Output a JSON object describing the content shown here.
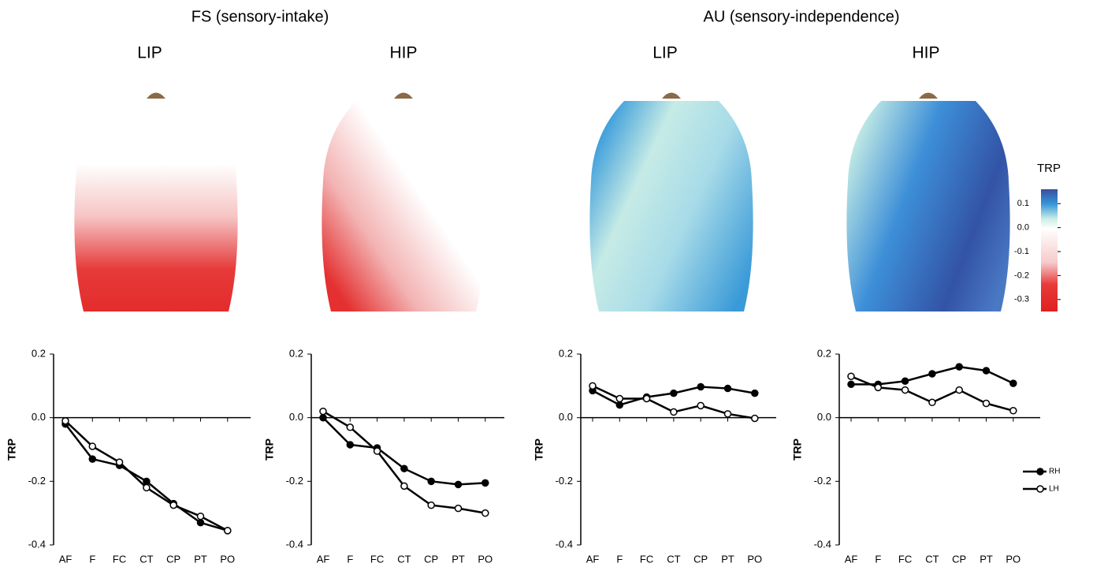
{
  "groups": [
    "FS (sensory-intake)",
    "AU (sensory-independence)"
  ],
  "colorbar": {
    "title": "TRP",
    "lim": [
      -0.35,
      0.16
    ],
    "ticks": [
      0.1,
      {
        "value": 0,
        "label": "0.0"
      },
      -0.1,
      -0.2,
      -0.3
    ]
  },
  "chart_data": [
    {
      "type": "line",
      "title": "LIP",
      "ylabel": "TRP",
      "categories": [
        "AF",
        "F",
        "FC",
        "CT",
        "CP",
        "PT",
        "PO"
      ],
      "ylim": [
        -0.4,
        0.2
      ],
      "yticks": [
        0.2,
        {
          "value": 0,
          "label": "0.0"
        },
        -0.2,
        -0.4
      ],
      "series": [
        {
          "color": "#000000",
          "marker_fill": "#000000",
          "values": [
            -0.02,
            -0.13,
            -0.15,
            -0.2,
            -0.27,
            -0.33,
            -0.355
          ]
        },
        {
          "color": "#000000",
          "marker_fill": "#ffffff",
          "values": [
            -0.01,
            -0.09,
            -0.14,
            -0.22,
            -0.275,
            -0.31,
            -0.355
          ]
        }
      ]
    },
    {
      "type": "line",
      "title": "HIP",
      "ylabel": "TRP",
      "categories": [
        "AF",
        "F",
        "FC",
        "CT",
        "CP",
        "PT",
        "PO"
      ],
      "ylim": [
        -0.4,
        0.2
      ],
      "yticks": [
        0.2,
        {
          "value": 0,
          "label": "0.0"
        },
        -0.2,
        -0.4
      ],
      "series": [
        {
          "color": "#000000",
          "marker_fill": "#000000",
          "values": [
            0,
            -0.085,
            -0.095,
            -0.16,
            -0.2,
            -0.21,
            -0.205
          ]
        },
        {
          "color": "#000000",
          "marker_fill": "#ffffff",
          "values": [
            0.02,
            -0.03,
            -0.105,
            -0.215,
            -0.275,
            -0.285,
            -0.3
          ]
        }
      ]
    },
    {
      "type": "line",
      "title": "LIP",
      "ylabel": "TRP",
      "categories": [
        "AF",
        "F",
        "FC",
        "CT",
        "CP",
        "PT",
        "PO"
      ],
      "ylim": [
        -0.4,
        0.2
      ],
      "yticks": [
        0.2,
        {
          "value": 0,
          "label": "0.0"
        },
        -0.2,
        -0.4
      ],
      "series": [
        {
          "color": "#000000",
          "marker_fill": "#000000",
          "values": [
            0.085,
            0.04,
            0.065,
            0.077,
            0.097,
            0.092,
            0.077
          ]
        },
        {
          "color": "#000000",
          "marker_fill": "#ffffff",
          "values": [
            0.1,
            0.06,
            0.06,
            0.018,
            0.038,
            0.012,
            -0.002
          ]
        }
      ]
    },
    {
      "type": "line",
      "title": "HIP",
      "ylabel": "TRP",
      "categories": [
        "AF",
        "F",
        "FC",
        "CT",
        "CP",
        "PT",
        "PO"
      ],
      "ylim": [
        -0.4,
        0.2
      ],
      "yticks": [
        0.2,
        {
          "value": 0,
          "label": "0.0"
        },
        -0.2,
        -0.4
      ],
      "legend": "right",
      "series": [
        {
          "name": "RH",
          "color": "#000000",
          "marker_fill": "#000000",
          "values": [
            0.105,
            0.105,
            0.115,
            0.138,
            0.16,
            0.148,
            0.108
          ]
        },
        {
          "name": "LH",
          "color": "#000000",
          "marker_fill": "#ffffff",
          "values": [
            0.13,
            0.095,
            0.087,
            0.048,
            0.087,
            0.045,
            0.022
          ]
        }
      ]
    }
  ]
}
